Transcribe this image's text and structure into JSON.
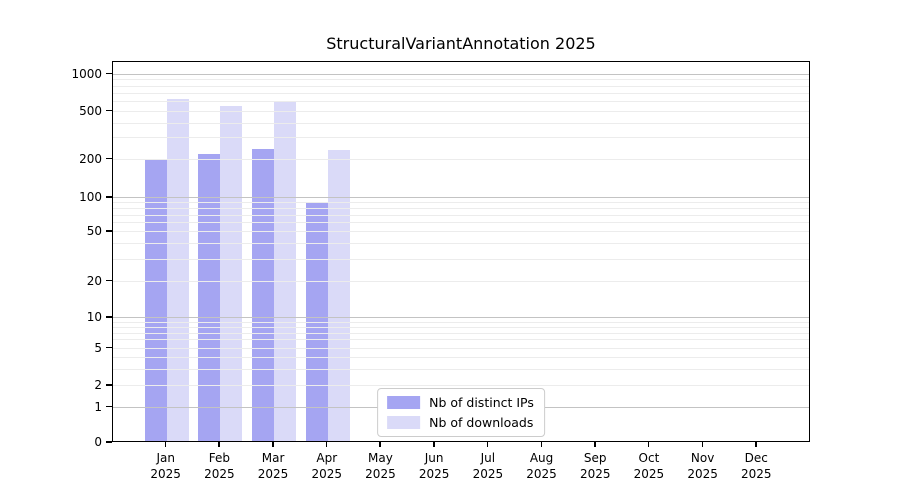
{
  "title": "StructuralVariantAnnotation 2025",
  "legend": {
    "items": [
      {
        "label": "Nb of distinct IPs",
        "color": "#a5a5f2"
      },
      {
        "label": "Nb of downloads",
        "color": "#dadaf8"
      }
    ]
  },
  "chart_data": {
    "type": "bar",
    "title": "StructuralVariantAnnotation 2025",
    "categories": [
      "Jan",
      "Feb",
      "Mar",
      "Apr",
      "May",
      "Jun",
      "Jul",
      "Aug",
      "Sep",
      "Oct",
      "Nov",
      "Dec"
    ],
    "year": "2025",
    "series": [
      {
        "name": "Nb of distinct IPs",
        "color": "#a5a5f2",
        "values": [
          190,
          215,
          235,
          87,
          null,
          null,
          null,
          null,
          null,
          null,
          null,
          null
        ]
      },
      {
        "name": "Nb of downloads",
        "color": "#dadaf8",
        "values": [
          615,
          540,
          590,
          230,
          null,
          null,
          null,
          null,
          null,
          null,
          null,
          null
        ]
      }
    ],
    "xlabel": "",
    "ylabel": "",
    "y_scale": "symlog",
    "y_ticks": [
      0,
      1,
      2,
      5,
      10,
      20,
      50,
      100,
      200,
      500,
      1000
    ],
    "ylim": [
      0,
      1300
    ],
    "grid": "horizontal",
    "grid_major_color": "#c3c3c3",
    "grid_minor_color": "#ececec",
    "legend_position": "lower center",
    "background": "#ffffff"
  }
}
